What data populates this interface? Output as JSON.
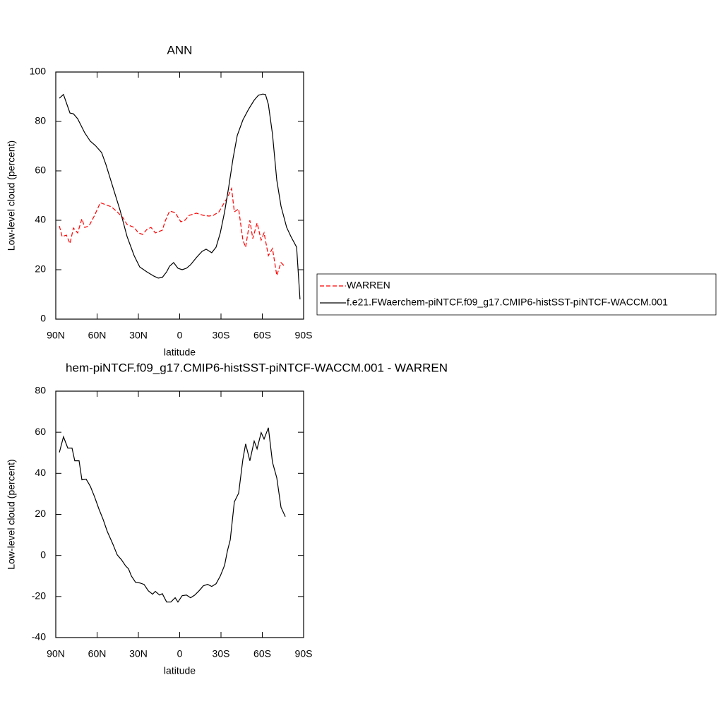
{
  "chart_data": [
    {
      "type": "line",
      "title": "ANN",
      "xlabel": "latitude",
      "ylabel": "Low-level cloud (percent)",
      "xlim": [
        90,
        -90
      ],
      "ylim": [
        0,
        100
      ],
      "xticks": [
        {
          "value": 90,
          "label": "90N"
        },
        {
          "value": 60,
          "label": "60N"
        },
        {
          "value": 30,
          "label": "30N"
        },
        0,
        {
          "value": -30,
          "label": "30S"
        },
        {
          "value": -60,
          "label": "60S"
        },
        {
          "value": -90,
          "label": "90S"
        }
      ],
      "yticks": [
        0,
        20,
        40,
        60,
        80,
        100
      ],
      "legend": "right",
      "series": [
        {
          "name": "WARREN",
          "color": "#ff0000",
          "linestyle": "dashed",
          "x": [
            87.4,
            85.4,
            82.3,
            79.7,
            77.2,
            74.1,
            71,
            69,
            65.9,
            61.8,
            57.7,
            53.6,
            49.5,
            45.4,
            41.3,
            38.2,
            33.1,
            30,
            26.9,
            23.8,
            20.8,
            17.7,
            12.6,
            10.5,
            7.4,
            3.3,
            -0.8,
            -3.8,
            -6.9,
            -12.1,
            -17.2,
            -21.3,
            -24.4,
            -28.5,
            -31.5,
            -34.6,
            -37.7,
            -39.7,
            -42.8,
            -45.9,
            -47.9,
            -51,
            -53.1,
            -56.2,
            -59.2,
            -61.3,
            -64.4,
            -67.4,
            -70.5,
            -73.6,
            -76.7
          ],
          "values": [
            37.7,
            33.4,
            34,
            30.6,
            36.9,
            34.9,
            40.6,
            37.1,
            37.7,
            42,
            47.1,
            46.3,
            45.4,
            43.4,
            41.1,
            38.3,
            37.1,
            34.9,
            34.3,
            36.3,
            37.1,
            34.9,
            36,
            39.7,
            43.7,
            43.1,
            39.4,
            40,
            42,
            42.9,
            42,
            41.7,
            42,
            43.4,
            46.3,
            49.1,
            52.9,
            43.4,
            44.6,
            32,
            29.1,
            40,
            32.6,
            38.9,
            32,
            34.9,
            25.7,
            28.6,
            17.7,
            22.9,
            21.1
          ]
        },
        {
          "name": "f.e21.FWaerchem-piNTCF.f09_g17.CMIP6-histSST-piNTCF-WACCM.001",
          "color": "#000000",
          "linestyle": "solid",
          "x": [
            87.4,
            84.4,
            79.7,
            77.2,
            74.1,
            69,
            64.9,
            61.3,
            56.7,
            53.6,
            48.5,
            43.3,
            38.2,
            33.1,
            29,
            23.8,
            18.7,
            15.6,
            12.6,
            9.5,
            7.4,
            4.4,
            1.3,
            -1.8,
            -4.9,
            -7.9,
            -12.1,
            -16.2,
            -19.2,
            -23.3,
            -26.4,
            -29.5,
            -32.6,
            -35.6,
            -38.7,
            -41.8,
            -45.9,
            -50,
            -54.1,
            -57.2,
            -60.3,
            -62.3,
            -64.4,
            -67.4,
            -70.5,
            -73.6,
            -77.7,
            -80.8,
            -84.9,
            -87.4
          ],
          "values": [
            89.4,
            90.9,
            83.4,
            83.1,
            81.1,
            75.4,
            72,
            70.3,
            67.4,
            62.6,
            53.4,
            44,
            33.4,
            25.7,
            21.1,
            19.1,
            17.4,
            16.6,
            16.9,
            19.1,
            21.4,
            22.9,
            20.6,
            20,
            20.6,
            22,
            24.9,
            27.4,
            28.3,
            26.9,
            29.1,
            34.9,
            43.4,
            53.4,
            64.9,
            74.3,
            80.6,
            84.9,
            88.6,
            90.6,
            91.1,
            90.9,
            86.9,
            74.9,
            56.3,
            45.7,
            37.1,
            33.4,
            29.1,
            8
          ]
        }
      ]
    },
    {
      "type": "line",
      "title": "hem-piNTCF.f09_g17.CMIP6-histSST-piNTCF-WACCM.001 - WARREN",
      "xlabel": "latitude",
      "ylabel": "Low-level cloud (percent)",
      "xlim": [
        90,
        -90
      ],
      "ylim": [
        -40,
        80
      ],
      "xticks": [
        {
          "value": 90,
          "label": "90N"
        },
        {
          "value": 60,
          "label": "60N"
        },
        {
          "value": 30,
          "label": "30N"
        },
        0,
        {
          "value": -30,
          "label": "30S"
        },
        {
          "value": -60,
          "label": "60S"
        },
        {
          "value": -90,
          "label": "90S"
        }
      ],
      "yticks": [
        -40,
        -20,
        0,
        20,
        40,
        60,
        80
      ],
      "series": [
        {
          "color": "#000000",
          "linestyle": "solid",
          "x": [
            87.4,
            84.4,
            81.3,
            78.2,
            76.2,
            73.1,
            71,
            67.9,
            64.9,
            61.8,
            58.7,
            55.6,
            52.6,
            48.5,
            45.4,
            42.3,
            39.2,
            37.2,
            35.1,
            32,
            29,
            25.9,
            22.8,
            19.7,
            17.7,
            14.6,
            12.6,
            9.5,
            6.4,
            3.3,
            1.3,
            -1.8,
            -4.9,
            -7.9,
            -11,
            -14.1,
            -17.2,
            -20.3,
            -23.3,
            -26.4,
            -29.5,
            -32.6,
            -34.6,
            -36.7,
            -39.7,
            -42.8,
            -45.9,
            -47.9,
            -51,
            -54.1,
            -56.2,
            -59.2,
            -61.3,
            -64.4,
            -67.4,
            -70.5,
            -73.6,
            -76.7
          ],
          "values": [
            50.2,
            57.8,
            52.3,
            52.3,
            46.1,
            46.1,
            36.8,
            37.1,
            33.7,
            28.5,
            22.7,
            17.5,
            11.7,
            5.5,
            0.3,
            -2.1,
            -5.2,
            -6.5,
            -10,
            -13.1,
            -13.4,
            -14.1,
            -17.2,
            -18.9,
            -17.5,
            -19.3,
            -18.6,
            -22.7,
            -22.7,
            -20.6,
            -22.7,
            -19.6,
            -19.3,
            -20.6,
            -19.3,
            -17.2,
            -14.8,
            -14.1,
            -15.1,
            -13.8,
            -10,
            -4.8,
            2.1,
            7.6,
            26.1,
            30.3,
            46.8,
            54.3,
            46.1,
            55.7,
            51.9,
            59.8,
            56.7,
            62.2,
            45.4,
            37.8,
            23.4,
            18.9
          ]
        }
      ]
    }
  ]
}
